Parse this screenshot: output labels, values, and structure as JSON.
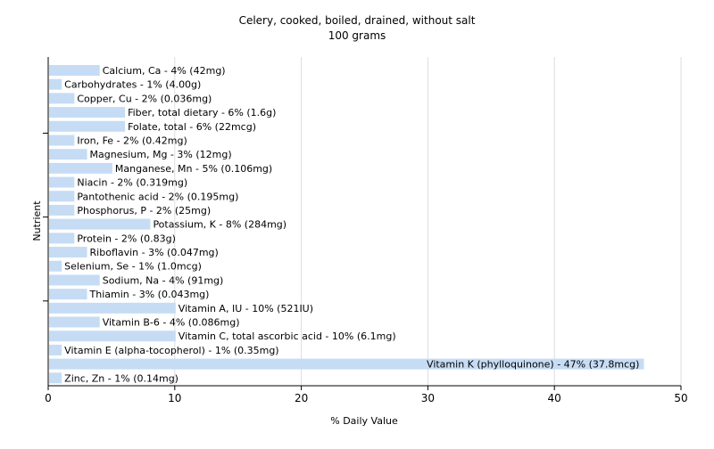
{
  "chart_data": {
    "type": "bar",
    "orientation": "horizontal",
    "title": "Celery, cooked, boiled, drained, without salt",
    "subtitle": "100 grams",
    "xlabel": "% Daily Value",
    "ylabel": "Nutrient",
    "xlim": [
      0,
      50
    ],
    "xticks": [
      0,
      10,
      20,
      30,
      40,
      50
    ],
    "grid": true,
    "colors": {
      "bar": "#c6dcf5",
      "grid": "#dddddd",
      "axis": "#000000",
      "text": "#000000"
    },
    "categories": [
      "Calcium, Ca",
      "Carbohydrates",
      "Copper, Cu",
      "Fiber, total dietary",
      "Folate, total",
      "Iron, Fe",
      "Magnesium, Mg",
      "Manganese, Mn",
      "Niacin",
      "Pantothenic acid",
      "Phosphorus, P",
      "Potassium, K",
      "Protein",
      "Riboflavin",
      "Selenium, Se",
      "Sodium, Na",
      "Thiamin",
      "Vitamin A, IU",
      "Vitamin B-6",
      "Vitamin C, total ascorbic acid",
      "Vitamin E (alpha-tocopherol)",
      "Vitamin K (phylloquinone)",
      "Zinc, Zn"
    ],
    "values": [
      4,
      1,
      2,
      6,
      6,
      2,
      3,
      5,
      2,
      2,
      2,
      8,
      2,
      3,
      1,
      4,
      3,
      10,
      4,
      10,
      1,
      47,
      1
    ],
    "labels": [
      "Calcium, Ca - 4% (42mg)",
      "Carbohydrates - 1% (4.00g)",
      "Copper, Cu - 2% (0.036mg)",
      "Fiber, total dietary - 6% (1.6g)",
      "Folate, total - 6% (22mcg)",
      "Iron, Fe - 2% (0.42mg)",
      "Magnesium, Mg - 3% (12mg)",
      "Manganese, Mn - 5% (0.106mg)",
      "Niacin - 2% (0.319mg)",
      "Pantothenic acid - 2% (0.195mg)",
      "Phosphorus, P - 2% (25mg)",
      "Potassium, K - 8% (284mg)",
      "Protein - 2% (0.83g)",
      "Riboflavin - 3% (0.047mg)",
      "Selenium, Se - 1% (1.0mcg)",
      "Sodium, Na - 4% (91mg)",
      "Thiamin - 3% (0.043mg)",
      "Vitamin A, IU - 10% (521IU)",
      "Vitamin B-6 - 4% (0.086mg)",
      "Vitamin C, total ascorbic acid - 10% (6.1mg)",
      "Vitamin E (alpha-tocopherol) - 1% (0.35mg)",
      "Vitamin K (phylloquinone) - 47% (37.8mcg)",
      "Zinc, Zn - 1% (0.14mg)"
    ]
  }
}
